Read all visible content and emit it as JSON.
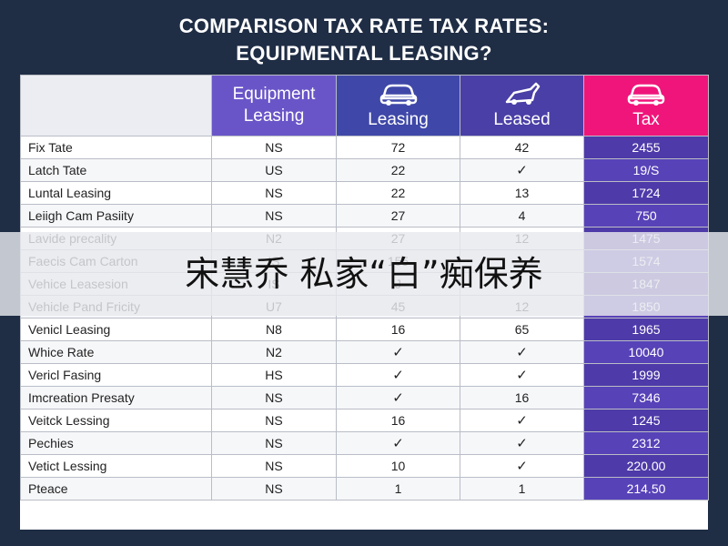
{
  "title_line1": "COMPARISON TAX RATE TAX RATES:",
  "title_line2": "EQUIPMENTAL LEASING?",
  "headers": [
    {
      "label_line1": "Equipment",
      "label_line2": "Leasing",
      "icon": ""
    },
    {
      "label_line1": "",
      "label_line2": "Leasing",
      "icon": "car-icon"
    },
    {
      "label_line1": "",
      "label_line2": "Leased",
      "icon": "truck-icon"
    },
    {
      "label_line1": "",
      "label_line2": "Tax",
      "icon": "car-icon"
    }
  ],
  "rows": [
    [
      "Fix Tate",
      "NS",
      "72",
      "42",
      "2455"
    ],
    [
      "Latch Tate",
      "US",
      "22",
      "✓",
      "19/S"
    ],
    [
      "Luntal Leasing",
      "NS",
      "22",
      "13",
      "1724"
    ],
    [
      "Leiigh Cam Pasiity",
      "NS",
      "27",
      "4",
      "750"
    ],
    [
      "Lavide precality",
      "N2",
      "27",
      "12",
      "1475"
    ],
    [
      "Faecis Cam Carton",
      "IS",
      "155",
      "",
      "1574"
    ],
    [
      "Vehice Leasesion",
      "IS",
      "J",
      "",
      "1847"
    ],
    [
      "Vehicle Pand Fricity",
      "U7",
      "45",
      "12",
      "1850"
    ],
    [
      "Venicl Leasing",
      "N8",
      "16",
      "65",
      "1965"
    ],
    [
      "Whice Rate",
      "N2",
      "✓",
      "✓",
      "10040"
    ],
    [
      "Vericl Fasing",
      "HS",
      "✓",
      "✓",
      "1999"
    ],
    [
      "Imcreation Presaty",
      "NS",
      "✓",
      "16",
      "7346"
    ],
    [
      "Veitck Lessing",
      "NS",
      "16",
      "✓",
      "1245"
    ],
    [
      "Pechies",
      "NS",
      "✓",
      "✓",
      "2312"
    ],
    [
      "Vetict Lessing",
      "NS",
      "10",
      "✓",
      "220.00"
    ],
    [
      "Pteace",
      "NS",
      "1",
      "1",
      "214.50"
    ]
  ],
  "banner_text": "宋慧乔 私家“白”痴保养",
  "colors": {
    "background": "#1f2d45",
    "header_col1": "#6a55c8",
    "header_col2": "#3f48a8",
    "header_col3": "#4a3fa6",
    "header_tax": "#f0157a",
    "tax_column": "#4e3aa8"
  }
}
